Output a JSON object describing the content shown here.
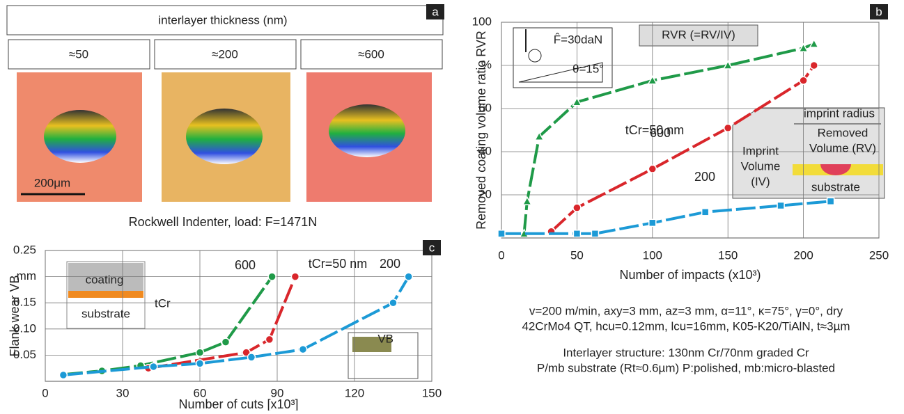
{
  "panel_a": {
    "label": "a",
    "header": "interlayer thickness (nm)",
    "columns": [
      "≈50",
      "≈200",
      "≈600"
    ],
    "scale_bar": "200μm",
    "caption": "Rockwell Indenter, load: F=1471N"
  },
  "conditions": [
    "v=200 m/min, axy=3 mm, az=3 mm, α=11°, κ=75°, γ=0°, dry",
    "42CrMo4 QT,  hcu=0.12mm, lcu=16mm, K05-K20/TiAlN, t≈3µm",
    "Interlayer structure: 130nm Cr/70nm graded Cr",
    "P/mb substrate (Rt≈0.6µm) P:polished, mb:micro-blasted"
  ],
  "chart_data": [
    {
      "type": "line",
      "label": "b",
      "xlabel": "Number of impacts (x10³)",
      "ylabel": "Removed coating volume ratio RVR",
      "xlim": [
        0,
        250
      ],
      "ylim": [
        0,
        100
      ],
      "xticks": [
        0,
        50,
        100,
        150,
        200,
        250
      ],
      "yticks": [
        20,
        40,
        60,
        {
          "value": 80,
          "label": "%"
        },
        100
      ],
      "grid": true,
      "dashed": true,
      "series": [
        {
          "name": "600",
          "color": "#1f9a48",
          "marker": "triangle",
          "x": [
            15,
            17,
            25,
            50,
            100,
            150,
            200,
            207
          ],
          "values": [
            2,
            17,
            47,
            63,
            73,
            80,
            88,
            90
          ]
        },
        {
          "name": "tCr=50 nm",
          "color": "#d9262b",
          "marker": "circle",
          "x": [
            33,
            50,
            100,
            150,
            200,
            207
          ],
          "values": [
            3,
            14,
            32,
            51,
            73,
            80
          ]
        },
        {
          "name": "200",
          "color": "#1c9ad6",
          "marker": "square",
          "x": [
            0,
            50,
            62,
            100,
            135,
            185,
            218
          ],
          "values": [
            2,
            2,
            2,
            7,
            12,
            15,
            17
          ]
        }
      ],
      "annotations": [
        "RVR (=RV/IV)",
        "F̂=30daN",
        "θ=15°",
        "imprint radius",
        "Removed",
        "Volume (RV)",
        "Imprint",
        "Volume",
        "(IV)",
        "substrate"
      ]
    },
    {
      "type": "line",
      "label": "c",
      "xlabel": "Number of cuts [x10³]",
      "ylabel": "Flank wear VB",
      "xlim": [
        0,
        150
      ],
      "ylim": [
        0,
        0.25
      ],
      "xticks": [
        0,
        30,
        60,
        90,
        120,
        150
      ],
      "yticks": [
        {
          "value": 0.05,
          "label": "0.05"
        },
        {
          "value": 0.1,
          "label": "0.10"
        },
        {
          "value": 0.15,
          "label": "0.15"
        },
        {
          "value": 0.2,
          "label": "mm"
        },
        {
          "value": 0.25,
          "label": "0.25"
        }
      ],
      "grid": true,
      "dashed": true,
      "series": [
        {
          "name": "600",
          "color": "#1f9a48",
          "marker": "circle",
          "x": [
            7,
            22,
            37,
            60,
            70,
            88
          ],
          "values": [
            0.013,
            0.02,
            0.03,
            0.055,
            0.075,
            0.2
          ]
        },
        {
          "name": "tCr=50 nm",
          "color": "#d9262b",
          "marker": "circle",
          "x": [
            40,
            78,
            87,
            97
          ],
          "values": [
            0.025,
            0.055,
            0.08,
            0.2
          ]
        },
        {
          "name": "200",
          "color": "#1c9ad6",
          "marker": "circle",
          "x": [
            7,
            42,
            60,
            80,
            100,
            135,
            141
          ],
          "values": [
            0.012,
            0.028,
            0.034,
            0.046,
            0.061,
            0.15,
            0.2
          ]
        }
      ],
      "annotations": [
        "coating",
        "tCr",
        "substrate",
        "VB"
      ]
    }
  ]
}
